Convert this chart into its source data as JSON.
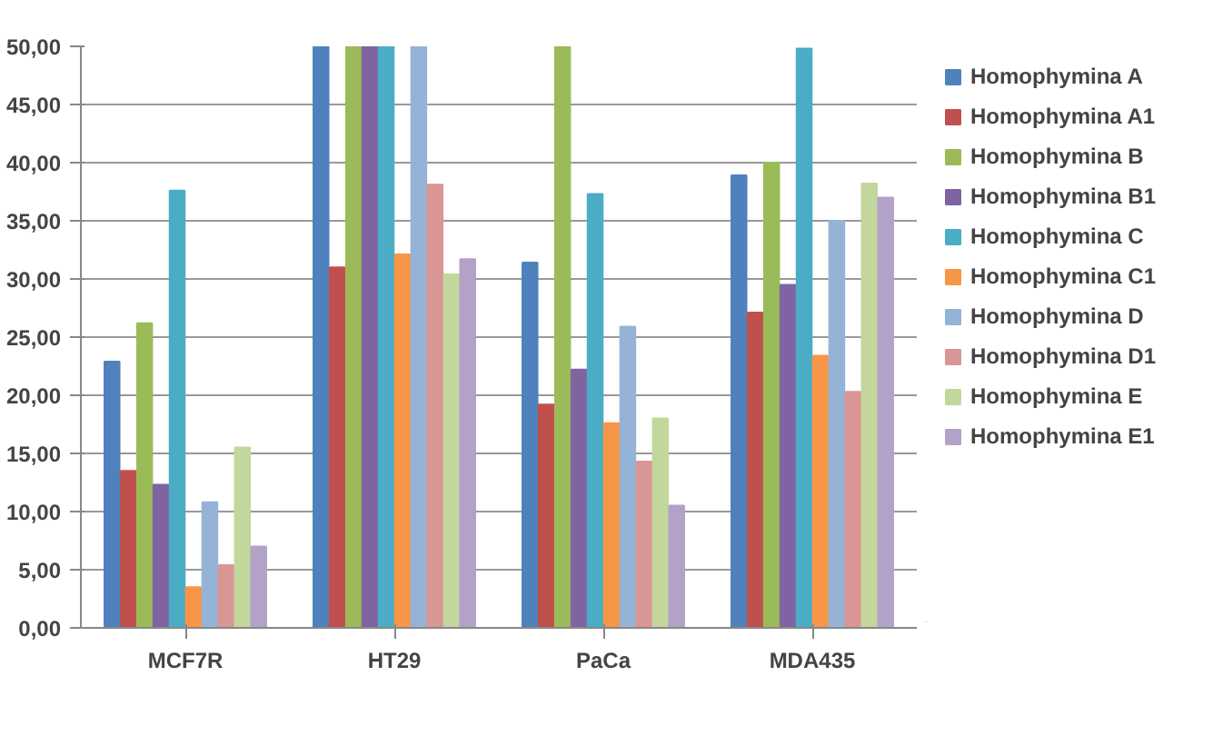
{
  "chart_data": {
    "type": "bar",
    "categories": [
      "MCF7R",
      "HT29",
      "PaCa",
      "MDA435"
    ],
    "series": [
      {
        "name": "Homophymina A",
        "color": "#4f81bd",
        "values": [
          22.9,
          50,
          31.4,
          38.9
        ]
      },
      {
        "name": "Homophymina A1",
        "color": "#c0504d",
        "values": [
          13.5,
          31,
          19.2,
          27.1
        ]
      },
      {
        "name": "Homophymina B",
        "color": "#9bbb59",
        "values": [
          26.2,
          50,
          50,
          40
        ]
      },
      {
        "name": "Homophymina B1",
        "color": "#8064a2",
        "values": [
          12.3,
          50,
          22.2,
          29.5
        ]
      },
      {
        "name": "Homophymina C",
        "color": "#4bacc6",
        "values": [
          37.6,
          50,
          37.3,
          49.8
        ]
      },
      {
        "name": "Homophymina C1",
        "color": "#f79646",
        "values": [
          3.5,
          32.1,
          17.6,
          23.4
        ]
      },
      {
        "name": "Homophymina D",
        "color": "#95b3d7",
        "values": [
          10.8,
          50,
          25.9,
          35
        ]
      },
      {
        "name": "Homophymina D1",
        "color": "#d99694",
        "values": [
          5.4,
          38.1,
          14.3,
          20.3
        ]
      },
      {
        "name": "Homophymina E",
        "color": "#c3d69b",
        "values": [
          15.5,
          30.4,
          18,
          38.2
        ]
      },
      {
        "name": "Homophymina E1",
        "color": "#b3a2c7",
        "values": [
          7,
          31.7,
          10.5,
          37
        ]
      }
    ],
    "ylim": [
      0,
      50
    ],
    "yticks": [
      {
        "value": 0,
        "label": "0,00"
      },
      {
        "value": 5,
        "label": "5,00"
      },
      {
        "value": 10,
        "label": "10,00"
      },
      {
        "value": 15,
        "label": "15,00"
      },
      {
        "value": 20,
        "label": "20,00"
      },
      {
        "value": 25,
        "label": "25,00"
      },
      {
        "value": 30,
        "label": "30,00"
      },
      {
        "value": 35,
        "label": "35,00"
      },
      {
        "value": 40,
        "label": "40,00"
      },
      {
        "value": 45,
        "label": "45,00"
      },
      {
        "value": 50,
        "label": "50,00"
      }
    ],
    "grid": "y",
    "legend": "right"
  }
}
